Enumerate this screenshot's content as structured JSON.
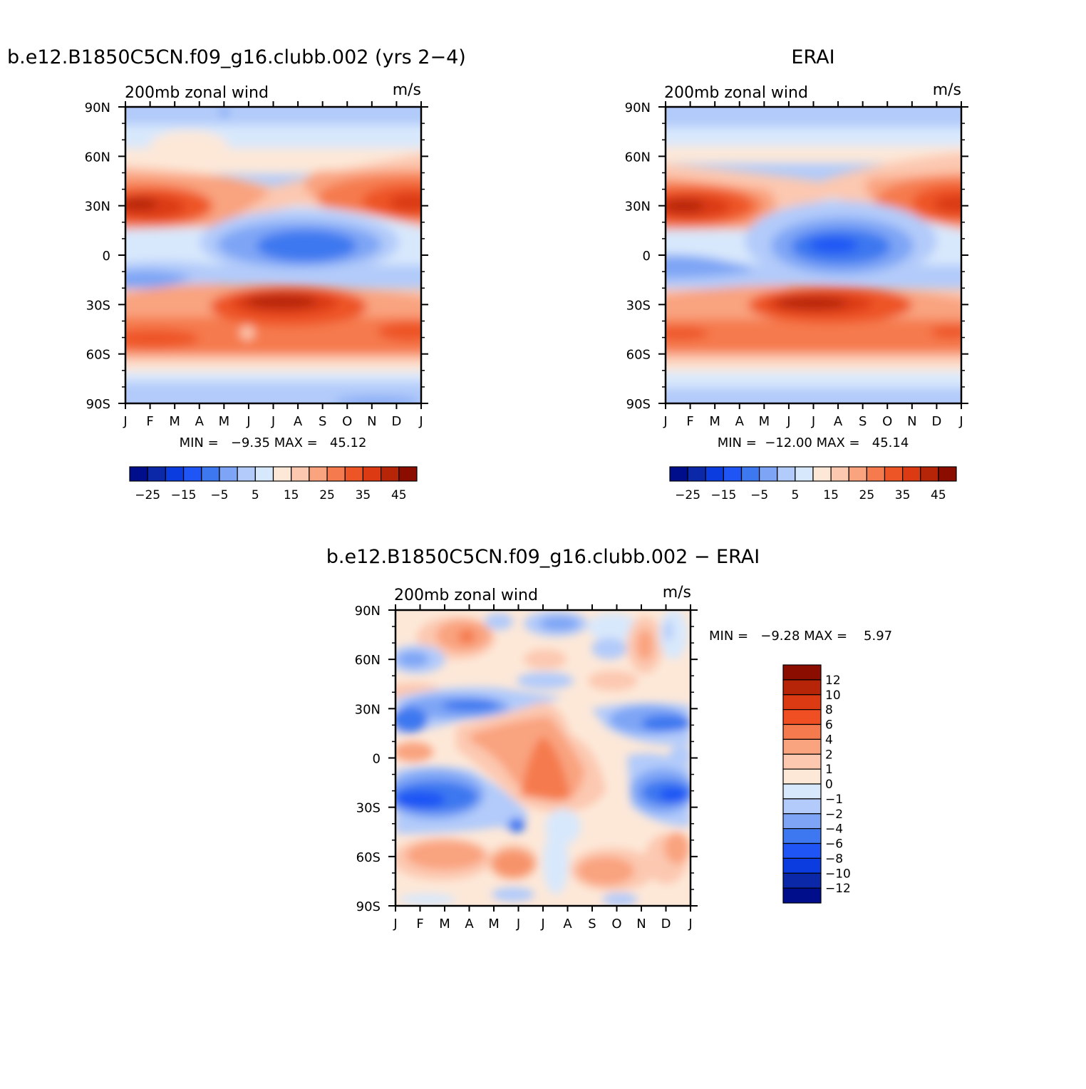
{
  "colors": {
    "full_palette": [
      "#000e8b",
      "#0a28a8",
      "#0a3ce0",
      "#1f55f5",
      "#3d78f0",
      "#7ea5f5",
      "#b2cbfa",
      "#d8e8fc",
      "#fde8d8",
      "#fcc8b0",
      "#f9a37f",
      "#f57a4e",
      "#ee5526",
      "#dc3a13",
      "#b62507",
      "#8b0d00"
    ],
    "diff_palette": [
      "#8b0d00",
      "#b62507",
      "#dc3a13",
      "#f04e23",
      "#f57a4e",
      "#f9a37f",
      "#fcc8b0",
      "#fde8d8",
      "#d8e8fc",
      "#b2cbfa",
      "#7ea5f5",
      "#3d78f0",
      "#1f55f5",
      "#0a3ce0",
      "#0a28a8",
      "#000e8b"
    ]
  },
  "panels": [
    {
      "title": "b.e12.B1850C5CN.f09_g16.clubb.002 (yrs 2−4)",
      "subtitle": "200mb zonal wind",
      "units": "m/s",
      "minmax": "MIN =   −9.35 MAX =   45.12",
      "x_ticks": [
        "J",
        "F",
        "M",
        "A",
        "M",
        "J",
        "J",
        "A",
        "S",
        "O",
        "N",
        "D",
        "J"
      ],
      "y_ticks": [
        "90N",
        "60N",
        "30N",
        "0",
        "30S",
        "60S",
        "90S"
      ],
      "colorbar_labels": [
        "−25",
        "−15",
        "−5",
        "5",
        "15",
        "25",
        "35",
        "45"
      ]
    },
    {
      "title": "ERAI",
      "subtitle": "200mb zonal wind",
      "units": "m/s",
      "minmax": "MIN =  −12.00 MAX =   45.14",
      "x_ticks": [
        "J",
        "F",
        "M",
        "A",
        "M",
        "J",
        "J",
        "A",
        "S",
        "O",
        "N",
        "D",
        "J"
      ],
      "y_ticks": [
        "90N",
        "60N",
        "30N",
        "0",
        "30S",
        "60S",
        "90S"
      ],
      "colorbar_labels": [
        "−25",
        "−15",
        "−5",
        "5",
        "15",
        "25",
        "35",
        "45"
      ]
    },
    {
      "title": "b.e12.B1850C5CN.f09_g16.clubb.002 − ERAI",
      "subtitle": "200mb zonal wind",
      "units": "m/s",
      "minmax": "MIN =   −9.28 MAX =    5.97",
      "x_ticks": [
        "J",
        "F",
        "M",
        "A",
        "M",
        "J",
        "J",
        "A",
        "S",
        "O",
        "N",
        "D",
        "J"
      ],
      "y_ticks": [
        "90N",
        "60N",
        "30N",
        "0",
        "30S",
        "60S",
        "90S"
      ],
      "colorbar_labels": [
        "12",
        "10",
        "8",
        "6",
        "4",
        "2",
        "1",
        "0",
        "−1",
        "−2",
        "−4",
        "−6",
        "−8",
        "−10",
        "−12"
      ]
    }
  ],
  "chart_data": [
    {
      "type": "heatmap",
      "title": "b.e12.B1850C5CN.f09_g16.clubb.002 (yrs 2−4)",
      "subtitle": "200mb zonal wind",
      "units": "m/s",
      "x_categories": [
        "J",
        "F",
        "M",
        "A",
        "M",
        "J",
        "J",
        "A",
        "S",
        "O",
        "N",
        "D",
        "J"
      ],
      "y_categories": [
        "90N",
        "60N",
        "30N",
        "0",
        "30S",
        "60S",
        "90S"
      ],
      "contour_levels": [
        -30,
        -25,
        -20,
        -15,
        -10,
        -5,
        0,
        5,
        10,
        15,
        20,
        25,
        30,
        35,
        40,
        45
      ],
      "min": -9.35,
      "max": 45.12
    },
    {
      "type": "heatmap",
      "title": "ERAI",
      "subtitle": "200mb zonal wind",
      "units": "m/s",
      "x_categories": [
        "J",
        "F",
        "M",
        "A",
        "M",
        "J",
        "J",
        "A",
        "S",
        "O",
        "N",
        "D",
        "J"
      ],
      "y_categories": [
        "90N",
        "60N",
        "30N",
        "0",
        "30S",
        "60S",
        "90S"
      ],
      "contour_levels": [
        -30,
        -25,
        -20,
        -15,
        -10,
        -5,
        0,
        5,
        10,
        15,
        20,
        25,
        30,
        35,
        40,
        45
      ],
      "min": -12.0,
      "max": 45.14
    },
    {
      "type": "heatmap",
      "title": "b.e12.B1850C5CN.f09_g16.clubb.002 − ERAI",
      "subtitle": "200mb zonal wind",
      "units": "m/s",
      "x_categories": [
        "J",
        "F",
        "M",
        "A",
        "M",
        "J",
        "J",
        "A",
        "S",
        "O",
        "N",
        "D",
        "J"
      ],
      "y_categories": [
        "90N",
        "60N",
        "30N",
        "0",
        "30S",
        "60S",
        "90S"
      ],
      "contour_levels": [
        12,
        10,
        8,
        6,
        4,
        2,
        1,
        0,
        -1,
        -2,
        -4,
        -6,
        -8,
        -10,
        -12
      ],
      "min": -9.28,
      "max": 5.97
    }
  ]
}
